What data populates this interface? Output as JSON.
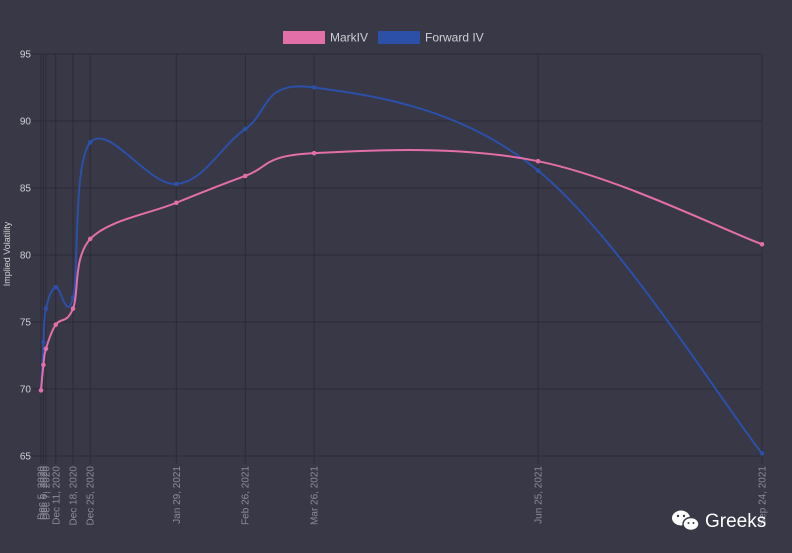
{
  "chart_data": {
    "type": "line",
    "ylabel": "Implied Volatility",
    "ylim": [
      65,
      95
    ],
    "yticks": [
      65,
      70,
      75,
      80,
      85,
      90,
      95
    ],
    "grid": true,
    "legend_position": "top-center",
    "x": [
      "Dec 5, 2020",
      "Dec 6, 2020",
      "Dec 7, 2020",
      "Dec 11, 2020",
      "Dec 18, 2020",
      "Dec 25, 2020",
      "Jan 29, 2021",
      "Feb 26, 2021",
      "Mar 26, 2021",
      "Jun 25, 2021",
      "Sep 24, 2021"
    ],
    "x_day_index": [
      0,
      1,
      2,
      6,
      13,
      20,
      55,
      83,
      111,
      202,
      293
    ],
    "series": [
      {
        "name": "MarkIV",
        "color": "#e36fa8",
        "values": [
          69.9,
          71.8,
          73.0,
          74.8,
          76.0,
          81.2,
          83.9,
          85.9,
          87.6,
          87.0,
          80.8
        ]
      },
      {
        "name": "Forward IV",
        "color": "#2c4fa8",
        "values": [
          69.9,
          73.5,
          76.0,
          77.6,
          76.8,
          88.4,
          85.3,
          89.4,
          92.5,
          86.3,
          65.2
        ]
      }
    ]
  },
  "watermark": {
    "text": "Greeks",
    "icon": "wechat-icon"
  }
}
